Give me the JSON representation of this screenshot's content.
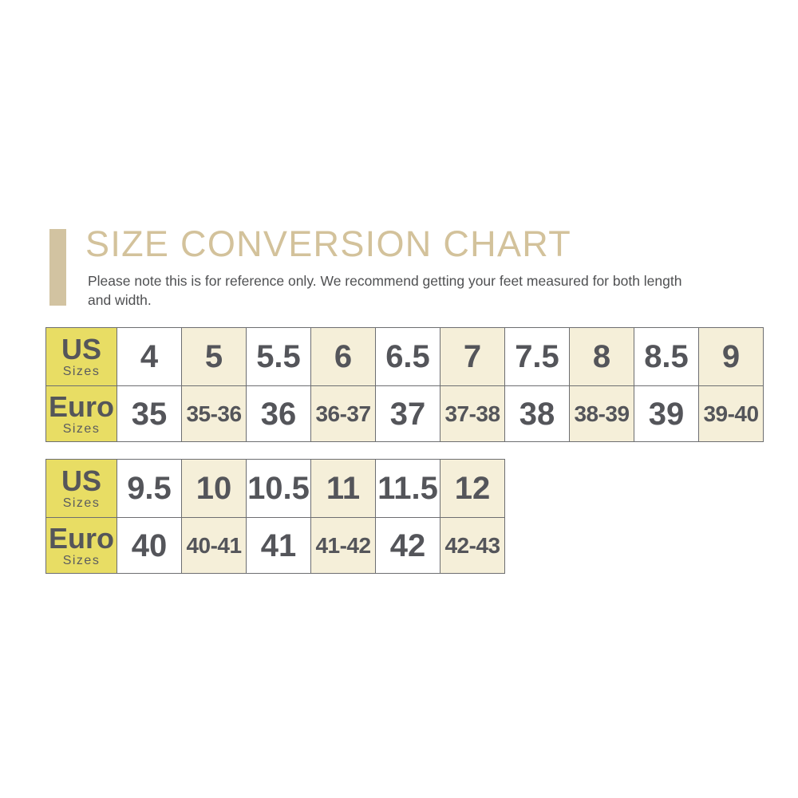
{
  "header": {
    "title": "SIZE CONVERSION CHART",
    "note_line1": "Please note this is for reference only. We recommend getting your feet measured for both length",
    "note_line2": "and width."
  },
  "colors": {
    "accent_tan": "#d2c3a1",
    "title_tan": "#d3c29b",
    "note_gray": "#4f5052",
    "header_yellow": "#e8dd64",
    "alt_cream": "#f5efd9",
    "cell_white": "#ffffff",
    "border_gray": "#6d6e71",
    "value_gray": "#54555a"
  },
  "chart_data": [
    {
      "type": "table",
      "title": "Size conversion table (US 4 - 9)",
      "row_headers": [
        {
          "main": "US",
          "sub": "Sizes"
        },
        {
          "main": "Euro",
          "sub": "Sizes"
        }
      ],
      "us_sizes": [
        "4",
        "5",
        "5.5",
        "6",
        "6.5",
        "7",
        "7.5",
        "8",
        "8.5",
        "9"
      ],
      "euro_sizes": [
        "35",
        "35-36",
        "36",
        "36-37",
        "37",
        "37-38",
        "38",
        "38-39",
        "39",
        "39-40"
      ]
    },
    {
      "type": "table",
      "title": "Size conversion table (US 9.5 - 12)",
      "row_headers": [
        {
          "main": "US",
          "sub": "Sizes"
        },
        {
          "main": "Euro",
          "sub": "Sizes"
        }
      ],
      "us_sizes": [
        "9.5",
        "10",
        "10.5",
        "11",
        "11.5",
        "12"
      ],
      "euro_sizes": [
        "40",
        "40-41",
        "41",
        "41-42",
        "42",
        "42-43"
      ]
    }
  ]
}
